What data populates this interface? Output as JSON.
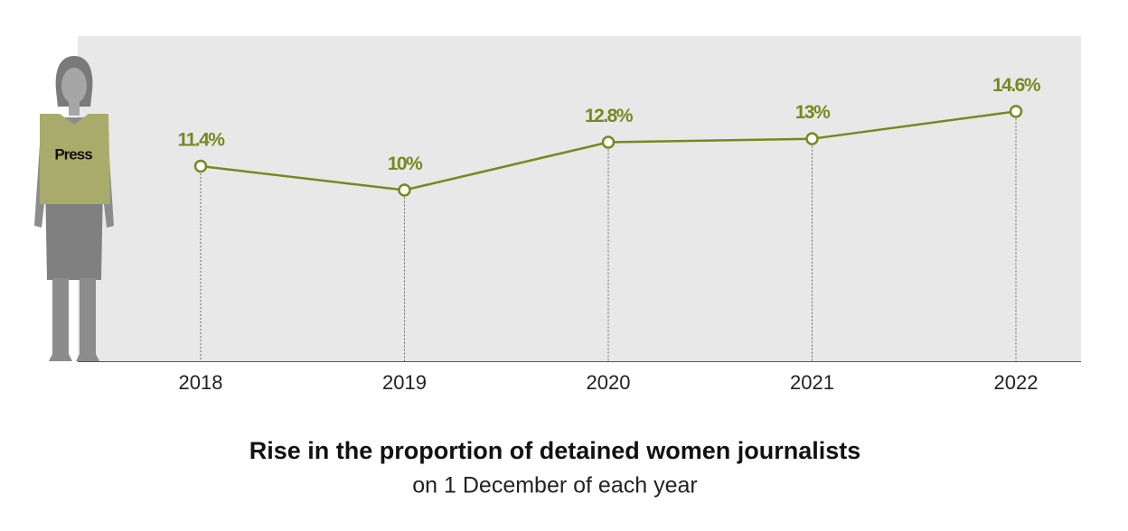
{
  "chart_data": {
    "type": "line",
    "title": "Rise in the proportion of detained women journalists",
    "subtitle": "on 1 December of each year",
    "figure_label": "Press",
    "categories": [
      "2018",
      "2019",
      "2020",
      "2021",
      "2022"
    ],
    "values": [
      11.4,
      10,
      12.8,
      13,
      14.6
    ],
    "value_labels": [
      "11.4%",
      "10%",
      "12.8%",
      "13%",
      "14.6%"
    ],
    "color": "#78881f",
    "ylim": [
      0,
      19
    ]
  }
}
